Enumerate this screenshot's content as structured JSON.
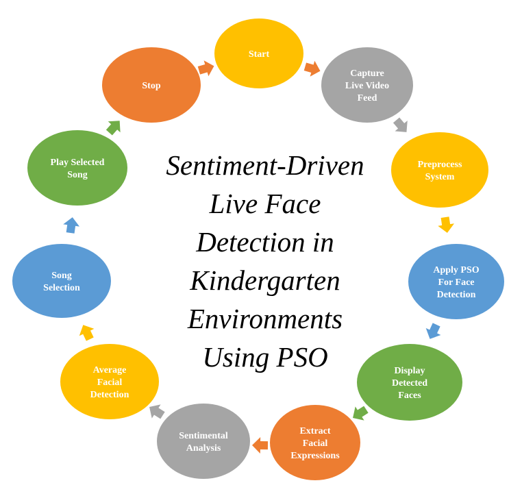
{
  "title": {
    "lines": [
      "Sentiment-Driven",
      "Live Face",
      "Detection in",
      "Kindergarten",
      "Environments",
      "Using PSO"
    ]
  },
  "colors": {
    "orange": "#ED7D31",
    "yellow": "#FFC000",
    "gray": "#A5A5A5",
    "blue": "#5B9BD5",
    "green": "#70AD47",
    "node_text": "#FFFFFF"
  },
  "nodes": [
    {
      "id": "start",
      "lines": [
        "Start"
      ],
      "color": "yellow"
    },
    {
      "id": "capture-live-video-feed",
      "lines": [
        "Capture",
        "Live Video",
        "Feed"
      ],
      "color": "gray"
    },
    {
      "id": "preprocess-system",
      "lines": [
        "Preprocess",
        "System"
      ],
      "color": "yellow"
    },
    {
      "id": "apply-pso-for-face-detection",
      "lines": [
        "Apply PSO",
        "For Face",
        "Detection"
      ],
      "color": "blue"
    },
    {
      "id": "display-detected-faces",
      "lines": [
        "Display",
        "Detected",
        "Faces"
      ],
      "color": "green"
    },
    {
      "id": "extract-facial-expressions",
      "lines": [
        "Extract",
        "Facial",
        "Expressions"
      ],
      "color": "orange"
    },
    {
      "id": "sentimental-analysis",
      "lines": [
        "Sentimental",
        "Analysis"
      ],
      "color": "gray"
    },
    {
      "id": "average-facial-detection",
      "lines": [
        "Average",
        "Facial",
        "Detection"
      ],
      "color": "yellow"
    },
    {
      "id": "song-selection",
      "lines": [
        "Song",
        "Selection"
      ],
      "color": "blue"
    },
    {
      "id": "play-selected-song",
      "lines": [
        "Play Selected",
        "Song"
      ],
      "color": "green"
    },
    {
      "id": "stop",
      "lines": [
        "Stop"
      ],
      "color": "orange"
    }
  ],
  "arrows": [
    {
      "from": "stop",
      "to": "start",
      "color": "orange"
    },
    {
      "from": "start",
      "to": "capture-live-video-feed",
      "color": "orange"
    },
    {
      "from": "capture-live-video-feed",
      "to": "preprocess-system",
      "color": "gray"
    },
    {
      "from": "preprocess-system",
      "to": "apply-pso-for-face-detection",
      "color": "yellow"
    },
    {
      "from": "apply-pso-for-face-detection",
      "to": "display-detected-faces",
      "color": "blue"
    },
    {
      "from": "display-detected-faces",
      "to": "extract-facial-expressions",
      "color": "green"
    },
    {
      "from": "extract-facial-expressions",
      "to": "sentimental-analysis",
      "color": "orange"
    },
    {
      "from": "sentimental-analysis",
      "to": "average-facial-detection",
      "color": "gray"
    },
    {
      "from": "average-facial-detection",
      "to": "song-selection",
      "color": "yellow"
    },
    {
      "from": "song-selection",
      "to": "play-selected-song",
      "color": "blue"
    },
    {
      "from": "play-selected-song",
      "to": "stop",
      "color": "green"
    }
  ]
}
